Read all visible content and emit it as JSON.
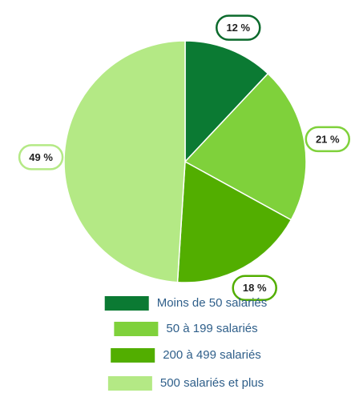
{
  "chart_data": {
    "type": "pie",
    "categories": [
      "Moins de 50 salariés",
      "50 à 199 salariés",
      "200 à 499 salariés",
      "500 salariés et plus"
    ],
    "values": [
      12,
      21,
      18,
      49
    ],
    "value_labels": [
      "12 %",
      "21 %",
      "18 %",
      "49 %"
    ],
    "colors": [
      "#0b7a33",
      "#7fd13b",
      "#52ae00",
      "#b4e985"
    ]
  }
}
